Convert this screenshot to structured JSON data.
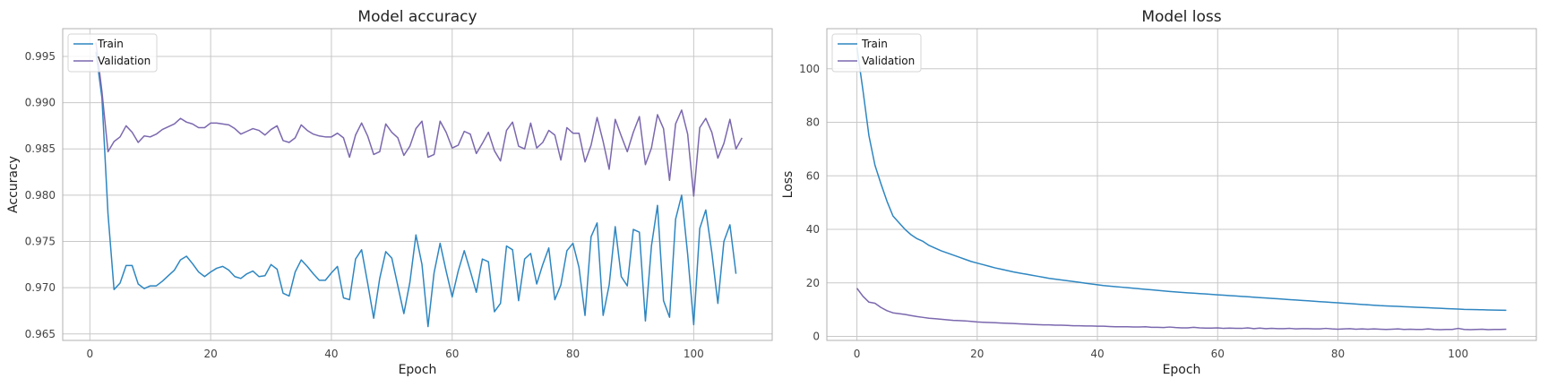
{
  "chart_data": [
    {
      "type": "line",
      "title": "Model accuracy",
      "xlabel": "Epoch",
      "ylabel": "Accuracy",
      "xlim": [
        -4.5,
        113
      ],
      "ylim": [
        0.9643,
        0.998
      ],
      "xticks": [
        0,
        20,
        40,
        60,
        80,
        100
      ],
      "yticks": [
        0.965,
        0.97,
        0.975,
        0.98,
        0.985,
        0.99,
        0.995
      ],
      "ytick_labels": [
        "0.965",
        "0.970",
        "0.975",
        "0.980",
        "0.985",
        "0.990",
        "0.995"
      ],
      "legend": "upper left",
      "grid": true,
      "series": [
        {
          "name": "Train",
          "color": "#2e86c1",
          "x_start": 1,
          "values": [
            0.9955,
            0.9905,
            0.978,
            0.9698,
            0.9705,
            0.9724,
            0.9724,
            0.9704,
            0.9699,
            0.9702,
            0.9702,
            0.9707,
            0.9713,
            0.9719,
            0.973,
            0.9734,
            0.9726,
            0.9717,
            0.9712,
            0.9717,
            0.9721,
            0.9723,
            0.9719,
            0.9712,
            0.971,
            0.9715,
            0.9718,
            0.9712,
            0.9713,
            0.9725,
            0.972,
            0.9694,
            0.9691,
            0.9717,
            0.973,
            0.9723,
            0.9715,
            0.9708,
            0.9708,
            0.9716,
            0.9723,
            0.9689,
            0.9687,
            0.9731,
            0.9741,
            0.9705,
            0.9667,
            0.971,
            0.9739,
            0.9732,
            0.9702,
            0.9672,
            0.9706,
            0.9757,
            0.9725,
            0.9658,
            0.9716,
            0.9748,
            0.9718,
            0.969,
            0.9718,
            0.974,
            0.9718,
            0.9695,
            0.9731,
            0.9728,
            0.9674,
            0.9683,
            0.9745,
            0.9741,
            0.9686,
            0.9731,
            0.9737,
            0.9704,
            0.9725,
            0.9743,
            0.9687,
            0.9703,
            0.974,
            0.9748,
            0.9722,
            0.967,
            0.9755,
            0.977,
            0.967,
            0.9703,
            0.9766,
            0.9712,
            0.9702,
            0.9763,
            0.976,
            0.9664,
            0.9745,
            0.9789,
            0.9686,
            0.9668,
            0.9774,
            0.98,
            0.9736,
            0.966,
            0.9764,
            0.9784,
            0.9738,
            0.9683,
            0.975,
            0.9768,
            0.9715
          ]
        },
        {
          "name": "Validation",
          "color": "#7b68ae",
          "x_start": 1,
          "values": [
            0.9965,
            0.9912,
            0.9847,
            0.9858,
            0.9863,
            0.9875,
            0.9868,
            0.9857,
            0.9864,
            0.9863,
            0.9866,
            0.9871,
            0.9874,
            0.9877,
            0.9883,
            0.9879,
            0.9877,
            0.9873,
            0.9873,
            0.9878,
            0.9878,
            0.9877,
            0.9876,
            0.9872,
            0.9866,
            0.9869,
            0.9872,
            0.987,
            0.9865,
            0.9871,
            0.9875,
            0.9859,
            0.9857,
            0.9862,
            0.9876,
            0.987,
            0.9866,
            0.9864,
            0.9863,
            0.9863,
            0.9867,
            0.9862,
            0.9841,
            0.9865,
            0.9878,
            0.9864,
            0.9844,
            0.9847,
            0.9877,
            0.9868,
            0.9862,
            0.9843,
            0.9853,
            0.9872,
            0.988,
            0.9841,
            0.9844,
            0.988,
            0.9868,
            0.9851,
            0.9854,
            0.9869,
            0.9866,
            0.9845,
            0.9856,
            0.9868,
            0.9848,
            0.9837,
            0.987,
            0.9879,
            0.9853,
            0.985,
            0.9878,
            0.9851,
            0.9857,
            0.987,
            0.9865,
            0.9838,
            0.9873,
            0.9867,
            0.9867,
            0.9836,
            0.9854,
            0.9884,
            0.9858,
            0.9828,
            0.9882,
            0.9864,
            0.9847,
            0.9868,
            0.9885,
            0.9833,
            0.9851,
            0.9887,
            0.9872,
            0.9816,
            0.9877,
            0.9892,
            0.9866,
            0.9799,
            0.9873,
            0.9883,
            0.9868,
            0.984,
            0.9856,
            0.9882,
            0.985,
            0.9862
          ]
        }
      ]
    },
    {
      "type": "line",
      "title": "Model loss",
      "xlabel": "Epoch",
      "ylabel": "Loss",
      "xlim": [
        -5,
        113
      ],
      "ylim": [
        -1.5,
        115
      ],
      "xticks": [
        0,
        20,
        40,
        60,
        80,
        100
      ],
      "yticks": [
        0,
        20,
        40,
        60,
        80,
        100
      ],
      "ytick_labels": [
        "0",
        "20",
        "40",
        "60",
        "80",
        "100"
      ],
      "legend": "upper left",
      "grid": true,
      "series": [
        {
          "name": "Train",
          "color": "#2e86c1",
          "x_start": 0,
          "values": [
            108.0,
            92.0,
            75.0,
            64.0,
            57.0,
            50.5,
            45.0,
            42.5,
            40.0,
            38.0,
            36.5,
            35.5,
            34.0,
            33.0,
            32.0,
            31.2,
            30.4,
            29.6,
            28.8,
            28.0,
            27.4,
            26.8,
            26.2,
            25.6,
            25.1,
            24.6,
            24.1,
            23.7,
            23.3,
            22.9,
            22.5,
            22.1,
            21.7,
            21.4,
            21.1,
            20.8,
            20.5,
            20.2,
            19.9,
            19.6,
            19.3,
            19.0,
            18.8,
            18.6,
            18.4,
            18.2,
            18.0,
            17.8,
            17.6,
            17.4,
            17.2,
            17.0,
            16.8,
            16.6,
            16.45,
            16.3,
            16.15,
            16.0,
            15.85,
            15.7,
            15.55,
            15.4,
            15.25,
            15.1,
            14.95,
            14.8,
            14.65,
            14.5,
            14.35,
            14.2,
            14.05,
            13.9,
            13.75,
            13.6,
            13.45,
            13.3,
            13.15,
            13.0,
            12.85,
            12.7,
            12.55,
            12.4,
            12.25,
            12.1,
            11.95,
            11.8,
            11.65,
            11.5,
            11.4,
            11.3,
            11.2,
            11.1,
            11.0,
            10.9,
            10.8,
            10.7,
            10.6,
            10.5,
            10.4,
            10.3,
            10.2,
            10.1,
            10.05,
            10.0,
            9.95,
            9.9,
            9.85,
            9.8,
            9.75
          ]
        },
        {
          "name": "Validation",
          "color": "#7b68ae",
          "x_start": 0,
          "values": [
            18.0,
            15.0,
            12.8,
            12.4,
            10.8,
            9.6,
            8.8,
            8.5,
            8.2,
            7.8,
            7.4,
            7.1,
            6.8,
            6.6,
            6.4,
            6.2,
            6.0,
            5.9,
            5.8,
            5.6,
            5.4,
            5.3,
            5.2,
            5.1,
            5.0,
            4.9,
            4.8,
            4.7,
            4.6,
            4.5,
            4.4,
            4.3,
            4.3,
            4.2,
            4.2,
            4.1,
            4.0,
            4.0,
            3.9,
            3.9,
            3.8,
            3.8,
            3.7,
            3.6,
            3.6,
            3.6,
            3.5,
            3.5,
            3.6,
            3.4,
            3.4,
            3.3,
            3.5,
            3.3,
            3.2,
            3.2,
            3.4,
            3.2,
            3.1,
            3.1,
            3.2,
            3.0,
            3.1,
            3.0,
            3.0,
            3.2,
            2.9,
            3.1,
            2.9,
            3.0,
            2.9,
            2.9,
            3.0,
            2.8,
            2.9,
            2.9,
            2.8,
            2.8,
            3.0,
            2.8,
            2.7,
            2.8,
            2.9,
            2.7,
            2.8,
            2.7,
            2.8,
            2.7,
            2.6,
            2.7,
            2.8,
            2.6,
            2.7,
            2.6,
            2.6,
            2.8,
            2.6,
            2.5,
            2.6,
            2.6,
            3.0,
            2.6,
            2.5,
            2.6,
            2.7,
            2.5,
            2.6,
            2.6,
            2.7
          ]
        }
      ]
    }
  ]
}
